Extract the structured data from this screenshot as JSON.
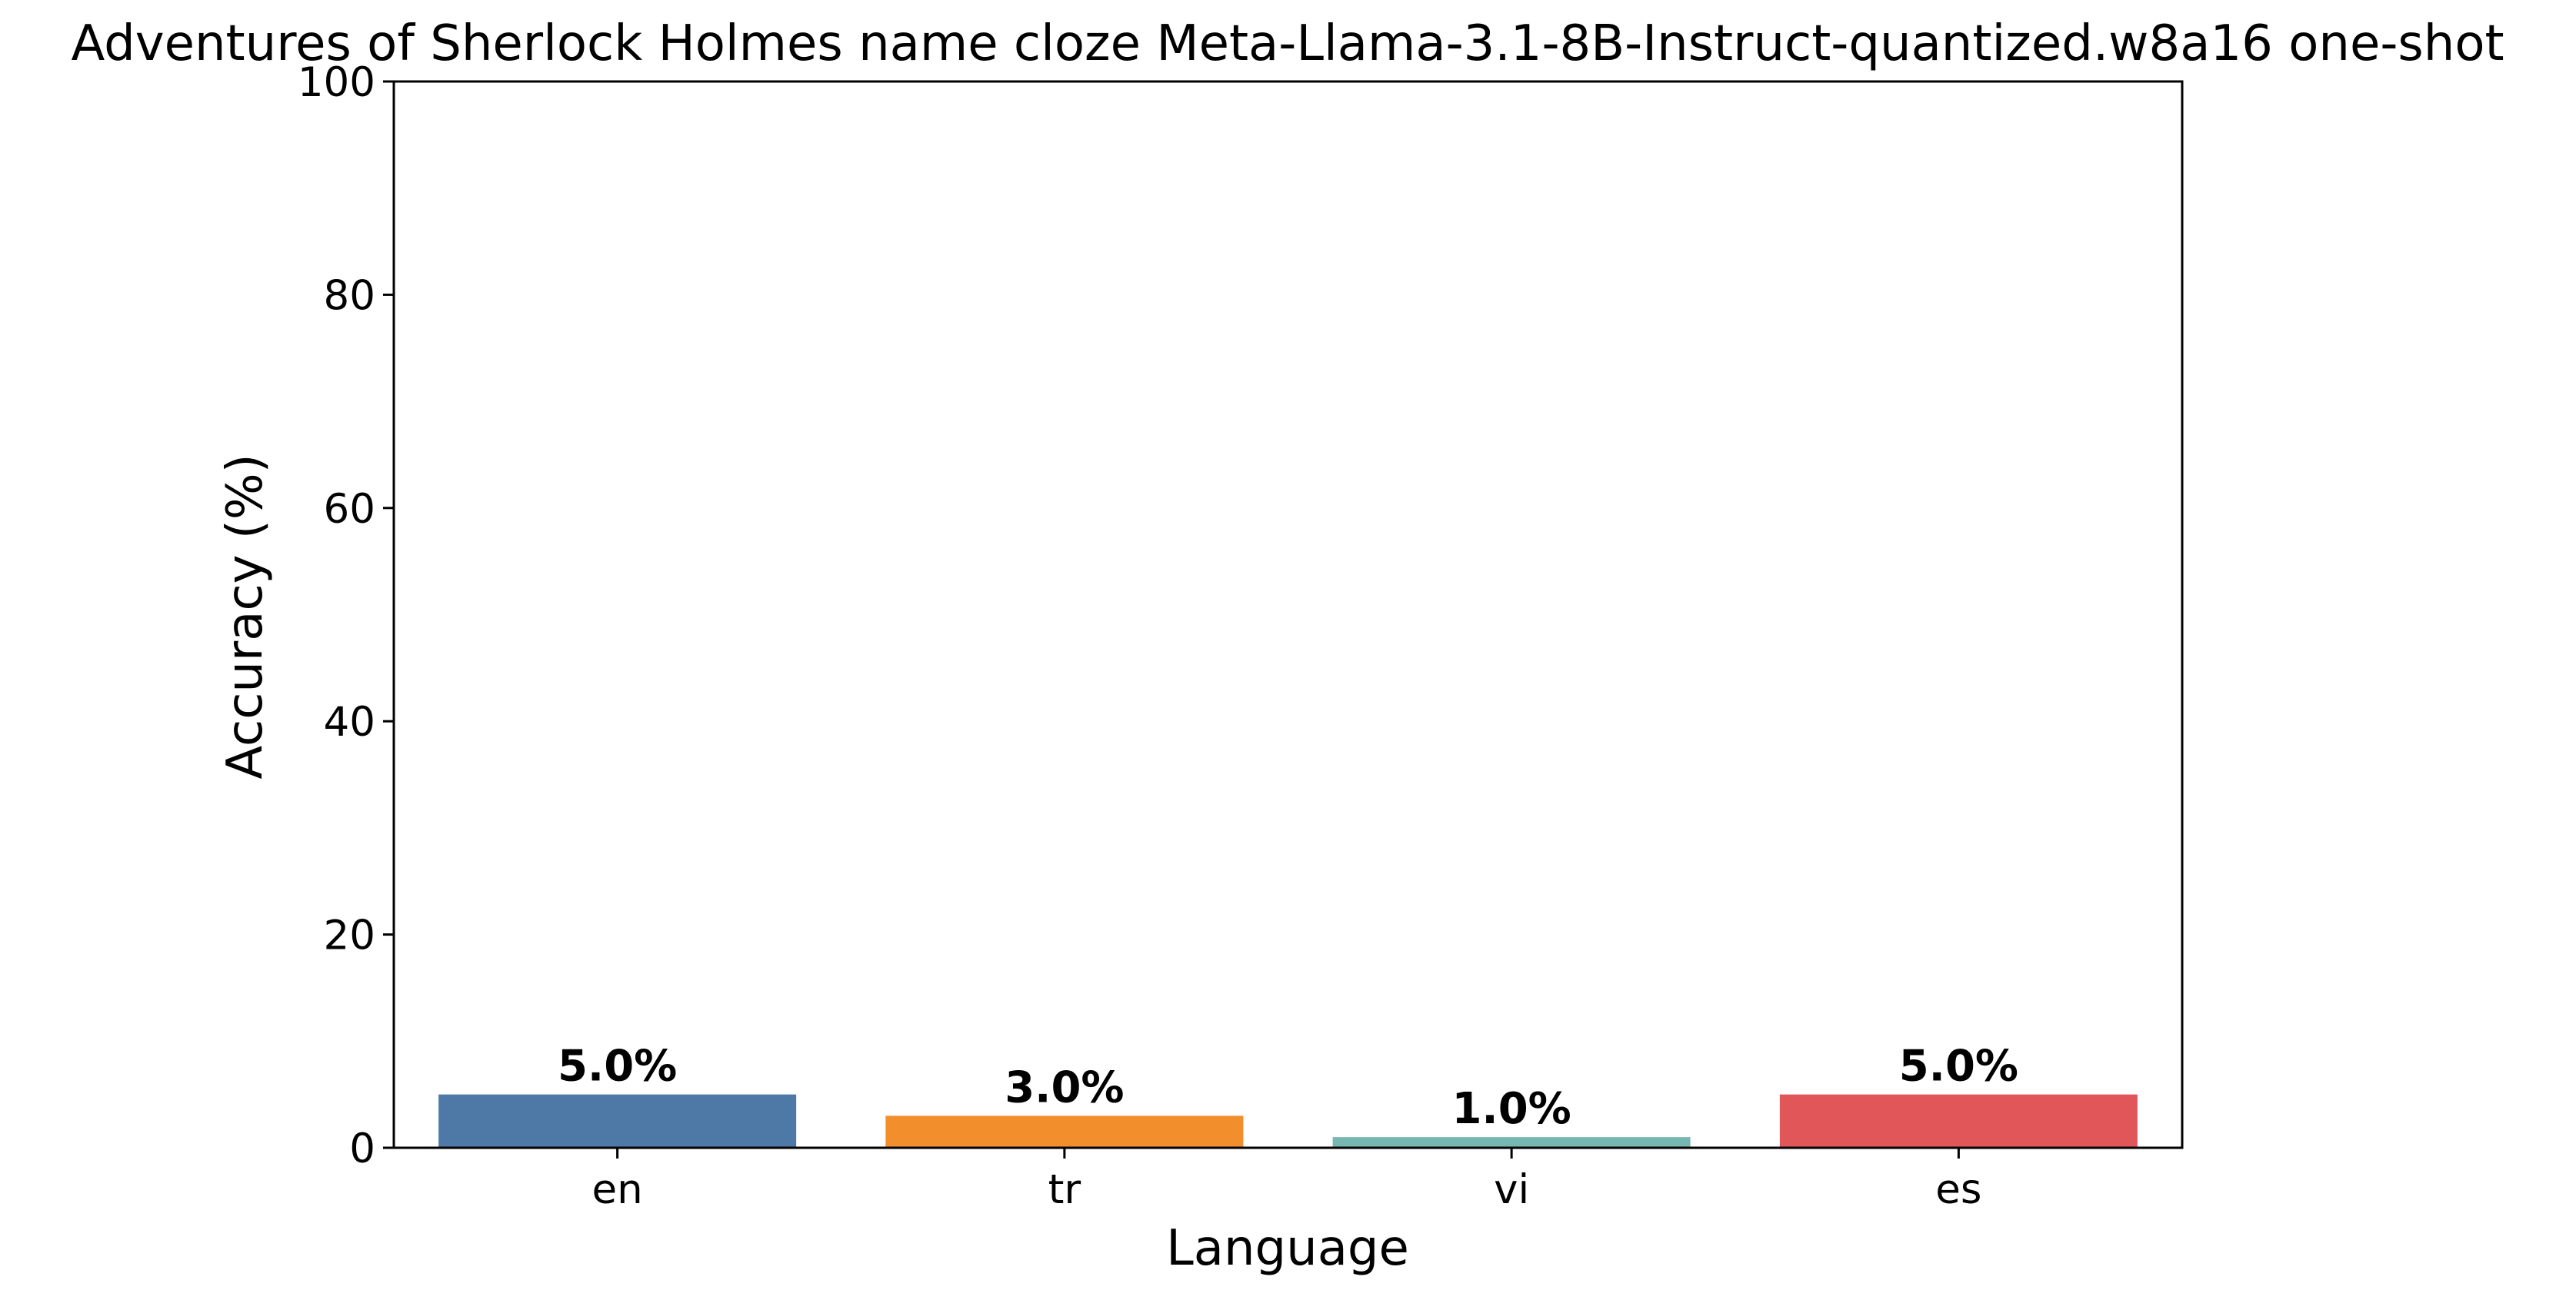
{
  "chart_data": {
    "type": "bar",
    "title": "Adventures of Sherlock Holmes name cloze Meta-Llama-3.1-8B-Instruct-quantized.w8a16 one-shot",
    "xlabel": "Language",
    "ylabel": "Accuracy (%)",
    "categories": [
      "en",
      "tr",
      "vi",
      "es"
    ],
    "values": [
      5.0,
      3.0,
      1.0,
      5.0
    ],
    "value_labels": [
      "5.0%",
      "3.0%",
      "1.0%",
      "5.0%"
    ],
    "colors": [
      "#4e79a7",
      "#f28e2b",
      "#76b7b2",
      "#e15759"
    ],
    "ylim": [
      0,
      100
    ],
    "yticks": [
      0,
      20,
      40,
      60,
      80,
      100
    ],
    "ytick_labels": [
      "0",
      "20",
      "40",
      "60",
      "80",
      "100"
    ],
    "grid": false,
    "legend": "none"
  }
}
